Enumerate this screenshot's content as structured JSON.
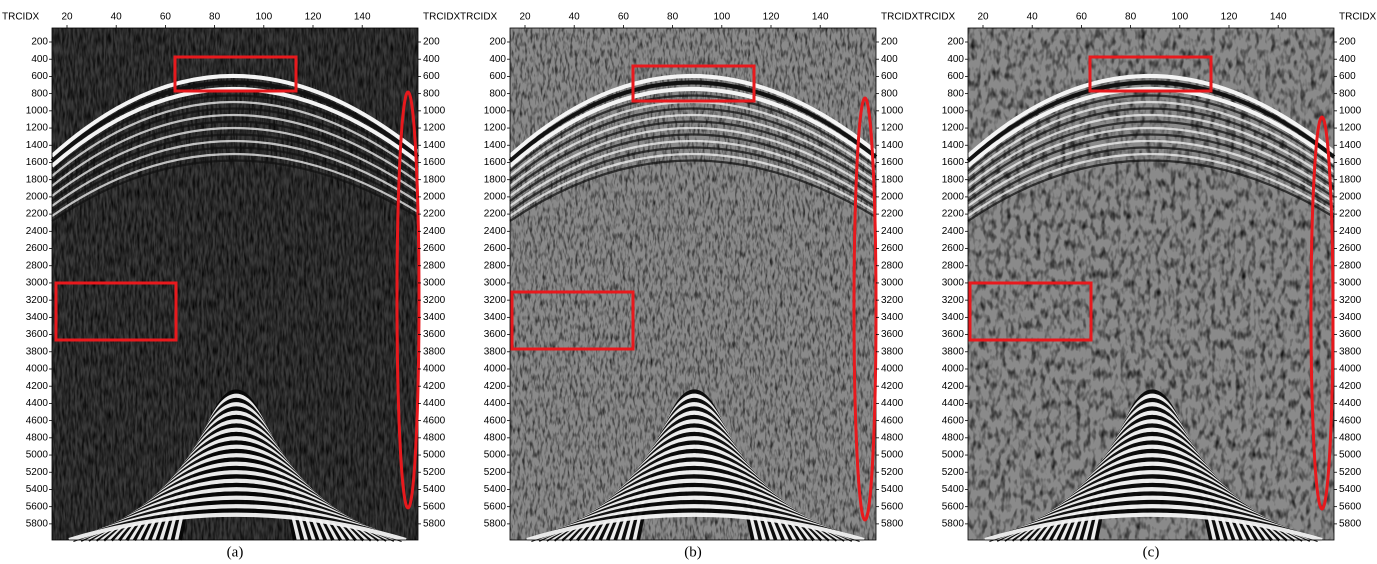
{
  "panels": [
    {
      "caption": "(a)",
      "axis_label_left": "TRCIDX",
      "axis_label_right": "TRCIDX",
      "xticks": [
        20,
        40,
        60,
        80,
        100,
        120,
        140
      ],
      "yticks": [
        200,
        400,
        600,
        800,
        1000,
        1200,
        1400,
        1600,
        1800,
        2000,
        2200,
        2400,
        2600,
        2800,
        3000,
        3200,
        3400,
        3600,
        3800,
        4000,
        4200,
        4400,
        4600,
        4800,
        5000,
        5200,
        5400,
        5600,
        5800
      ]
    },
    {
      "caption": "(b)",
      "axis_label_left": "TRCIDX",
      "axis_label_right": "TRCIDX",
      "xticks": [
        20,
        40,
        60,
        80,
        100,
        120,
        140
      ],
      "yticks": [
        200,
        400,
        600,
        800,
        1000,
        1200,
        1400,
        1600,
        1800,
        2000,
        2200,
        2400,
        2600,
        2800,
        3000,
        3200,
        3400,
        3600,
        3800,
        4000,
        4200,
        4400,
        4600,
        4800,
        5000,
        5200,
        5400,
        5600,
        5800
      ]
    },
    {
      "caption": "(c)",
      "axis_label_left": "TRCIDX",
      "axis_label_right": "TRCIDX",
      "xticks": [
        20,
        40,
        60,
        80,
        100,
        120,
        140
      ],
      "yticks": [
        200,
        400,
        600,
        800,
        1000,
        1200,
        1400,
        1600,
        1800,
        2000,
        2200,
        2400,
        2600,
        2800,
        3000,
        3200,
        3400,
        3600,
        3800,
        4000,
        4200,
        4400,
        4600,
        4800,
        5000,
        5200,
        5400,
        5600,
        5800
      ]
    }
  ]
}
